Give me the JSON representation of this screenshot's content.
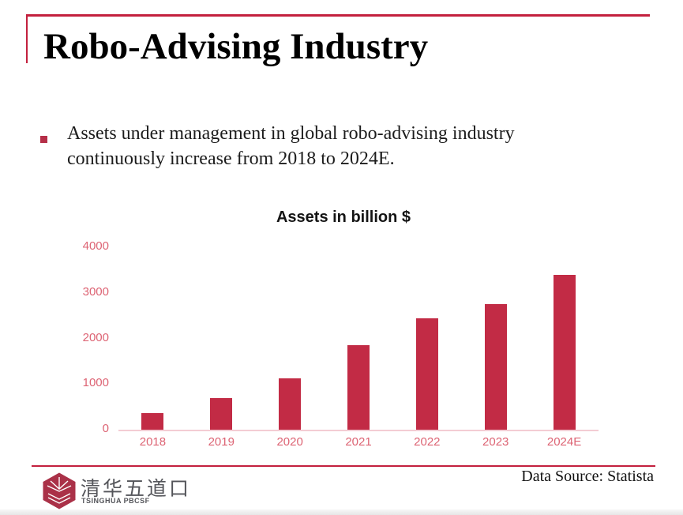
{
  "slide": {
    "title": "Robo-Advising Industry",
    "bullet_text": "Assets under management in global robo-advising industry continuously increase from 2018 to 2024E."
  },
  "chart_data": {
    "type": "bar",
    "title": "Assets in billion $",
    "categories": [
      "2018",
      "2019",
      "2020",
      "2021",
      "2022",
      "2023",
      "2024E"
    ],
    "values": [
      370,
      700,
      1120,
      1850,
      2450,
      2760,
      3390
    ],
    "xlabel": "",
    "ylabel": "",
    "ylim": [
      0,
      4000
    ],
    "yticks": [
      0,
      1000,
      2000,
      3000,
      4000
    ],
    "grid": false,
    "legend": "none",
    "bar_color": "#c22b45",
    "tick_label_color": "#dd6474",
    "axis_line_color": "#f3ccd3"
  },
  "footer": {
    "logo_text_cn": "清华五道口",
    "logo_text_en": "TSINGHUA PBCSF",
    "data_source": "Data Source: Statista"
  },
  "colors": {
    "accent": "#c3203e",
    "bullet": "#b52f48",
    "logo": "#aa3148",
    "title_text": "#000000",
    "body_text": "#1c1c1c",
    "footer_text": "#54555a"
  }
}
